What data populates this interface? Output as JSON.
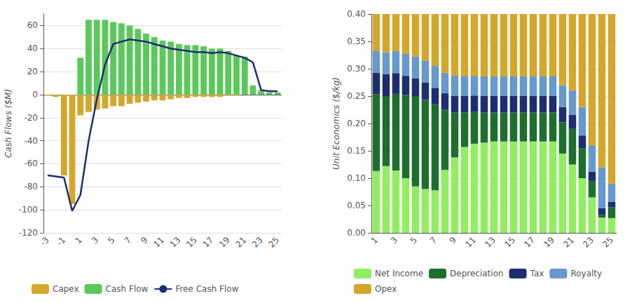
{
  "chart_data": [
    {
      "type": "bar",
      "categories": [
        "-3",
        null,
        "-1",
        null,
        "1",
        null,
        "3",
        null,
        "5",
        null,
        "7",
        null,
        "9",
        null,
        "11",
        null,
        "13",
        null,
        "15",
        null,
        "17",
        null,
        "19",
        null,
        "21",
        null,
        "23",
        null,
        "25"
      ],
      "series": [
        {
          "name": "Capex",
          "type": "bar",
          "color": "#D4A72C",
          "values": [
            -1,
            -2,
            -70,
            -95,
            -18,
            -15,
            -13,
            -12,
            -10,
            -10,
            -8,
            -7,
            -6,
            -5,
            -5,
            -4,
            -3,
            -3,
            -2,
            -2,
            -2,
            -2,
            -1,
            -1,
            0,
            0,
            0,
            0,
            0
          ]
        },
        {
          "name": "Cash Flow",
          "type": "bar",
          "color": "#5BC85B",
          "values": [
            0,
            0,
            0,
            0,
            32,
            65,
            65,
            65,
            63,
            62,
            60,
            57,
            53,
            50,
            47,
            46,
            44,
            43,
            43,
            42,
            40,
            40,
            38,
            34,
            33,
            8,
            4,
            2,
            2
          ]
        },
        {
          "name": "Free Cash Flow",
          "type": "line",
          "color": "#1C2D72",
          "values": [
            -70,
            -71,
            -72,
            -101,
            -87,
            -40,
            -4,
            26,
            44,
            46,
            48,
            47,
            46,
            44,
            42,
            40,
            39,
            38,
            37,
            37,
            36,
            37,
            36,
            34,
            32,
            28,
            4,
            3,
            3
          ]
        }
      ],
      "ylabel": "Cash Flows ($M)",
      "ylim": [
        -120,
        70
      ],
      "yticks": [
        -120,
        -100,
        -80,
        -60,
        -40,
        -20,
        0,
        20,
        40,
        60
      ],
      "grid": true,
      "legend": "bottom"
    },
    {
      "type": "bar",
      "stacked": true,
      "categories": [
        "1",
        null,
        "3",
        null,
        "5",
        null,
        "7",
        null,
        "9",
        null,
        "11",
        null,
        "13",
        null,
        "15",
        null,
        "17",
        null,
        "19",
        null,
        "21",
        null,
        "23",
        null,
        "25"
      ],
      "series": [
        {
          "name": "Net Income",
          "color": "#90EE60",
          "values": [
            0.113,
            0.122,
            0.114,
            0.1,
            0.085,
            0.08,
            0.078,
            0.115,
            0.138,
            0.157,
            0.163,
            0.165,
            0.167,
            0.167,
            0.167,
            0.167,
            0.167,
            0.167,
            0.167,
            0.145,
            0.125,
            0.1,
            0.065,
            0.028,
            0.027
          ]
        },
        {
          "name": "Depreciation",
          "color": "#1E6E2E",
          "values": [
            0.14,
            0.128,
            0.14,
            0.152,
            0.165,
            0.163,
            0.157,
            0.11,
            0.082,
            0.063,
            0.058,
            0.055,
            0.053,
            0.053,
            0.053,
            0.053,
            0.053,
            0.053,
            0.053,
            0.057,
            0.065,
            0.055,
            0.03,
            0.005,
            0.02
          ]
        },
        {
          "name": "Tax",
          "color": "#1C2D72",
          "values": [
            0.04,
            0.04,
            0.038,
            0.035,
            0.032,
            0.032,
            0.03,
            0.03,
            0.03,
            0.03,
            0.03,
            0.03,
            0.03,
            0.03,
            0.03,
            0.03,
            0.03,
            0.03,
            0.03,
            0.028,
            0.026,
            0.023,
            0.017,
            0.012,
            0.01
          ]
        },
        {
          "name": "Royalty",
          "color": "#6699CC",
          "values": [
            0.04,
            0.04,
            0.04,
            0.04,
            0.04,
            0.04,
            0.04,
            0.038,
            0.037,
            0.036,
            0.036,
            0.036,
            0.036,
            0.036,
            0.036,
            0.036,
            0.036,
            0.036,
            0.036,
            0.04,
            0.044,
            0.052,
            0.048,
            0.075,
            0.033
          ]
        },
        {
          "name": "Opex",
          "color": "#D4A72C",
          "values": [
            0.067,
            0.07,
            0.068,
            0.073,
            0.078,
            0.085,
            0.095,
            0.107,
            0.113,
            0.114,
            0.113,
            0.114,
            0.114,
            0.114,
            0.114,
            0.114,
            0.114,
            0.114,
            0.114,
            0.13,
            0.14,
            0.17,
            0.24,
            0.28,
            0.31
          ]
        }
      ],
      "ylabel": "Unit Economics ($/kg)",
      "ylim": [
        0,
        0.4
      ],
      "yticks": [
        {
          "value": 0,
          "label": "0.00"
        },
        0.05,
        {
          "value": 0.1,
          "label": "0.10"
        },
        0.15,
        {
          "value": 0.2,
          "label": "0.20"
        },
        0.25,
        {
          "value": 0.3,
          "label": "0.30"
        },
        0.35,
        {
          "value": 0.4,
          "label": "0.40"
        }
      ],
      "grid": true,
      "legend": "bottom"
    }
  ]
}
